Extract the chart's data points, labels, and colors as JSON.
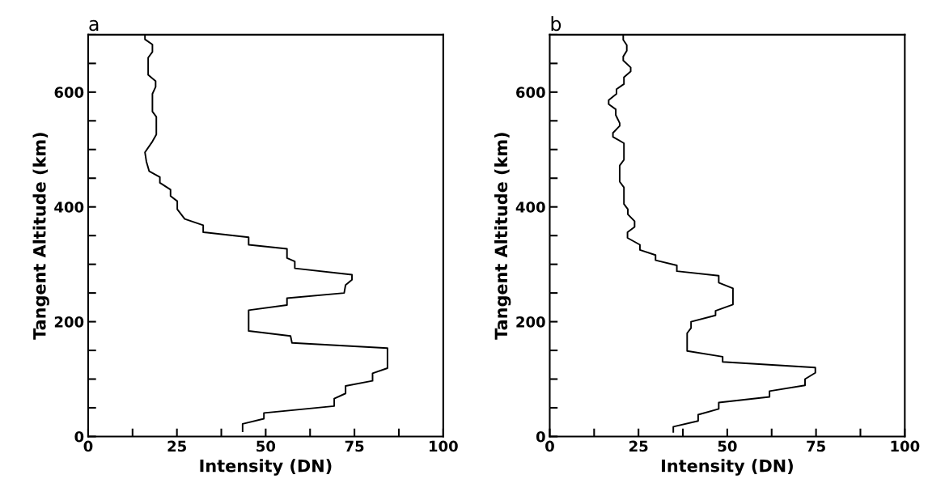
{
  "chart_data": [
    {
      "type": "line",
      "annotations": [
        "a"
      ],
      "xlabel": "Intensity (DN)",
      "ylabel": "Tangent Altitude (km)",
      "xlim": [
        0,
        100
      ],
      "ylim": [
        0,
        700
      ],
      "xticks": [
        0,
        {
          "value": 12.5,
          "label": null
        },
        25,
        {
          "value": 37.5,
          "label": null
        },
        50,
        {
          "value": 62.5,
          "label": null
        },
        75,
        {
          "value": 87.5,
          "label": null
        },
        100
      ],
      "yticks": [
        0,
        {
          "value": 50,
          "label": null
        },
        {
          "value": 100,
          "label": null
        },
        {
          "value": 150,
          "label": null
        },
        200,
        {
          "value": 250,
          "label": null
        },
        {
          "value": 300,
          "label": null
        },
        {
          "value": 350,
          "label": null
        },
        400,
        {
          "value": 450,
          "label": null
        },
        {
          "value": 500,
          "label": null
        },
        {
          "value": 550,
          "label": null
        },
        600,
        {
          "value": 650,
          "label": null
        },
        {
          "value": 700,
          "label": null
        }
      ],
      "grid": false,
      "series": [
        {
          "color": "#000000",
          "x": [
            43.5,
            43.5,
            49.5,
            49.5,
            69.3,
            69.3,
            72.5,
            72.5,
            80.1,
            80.1,
            84.3,
            84.3,
            57.4,
            57.0,
            45.2,
            45.2,
            56.0,
            56.0,
            72.1,
            72.5,
            74.3,
            74.3,
            58.2,
            58.2,
            56.0,
            56.0,
            45.2,
            45.2,
            32.4,
            32.4,
            27.2,
            25.1,
            25.1,
            23.2,
            23.2,
            20.2,
            20.2,
            17.2,
            16.4,
            16.0,
            18.1,
            19.2,
            19.2,
            18.1,
            18.1,
            19.0,
            19.0,
            16.9,
            16.9,
            18.1,
            18.1,
            16.0,
            16.0
          ],
          "values": [
            9,
            22,
            31,
            41,
            53,
            66,
            75,
            88,
            97,
            110,
            119,
            154,
            163,
            175,
            184,
            220,
            229,
            241,
            250,
            264,
            273,
            282,
            293,
            305,
            311,
            327,
            334,
            347,
            356,
            368,
            379,
            396,
            410,
            419,
            430,
            442,
            452,
            462,
            479,
            495,
            514,
            526,
            557,
            566,
            597,
            609,
            619,
            630,
            660,
            670,
            683,
            692,
            699
          ]
        }
      ]
    },
    {
      "type": "line",
      "annotations": [
        "b"
      ],
      "xlabel": "Intensity (DN)",
      "ylabel": "Tangent Altitude (km)",
      "xlim": [
        0,
        100
      ],
      "ylim": [
        0,
        700
      ],
      "xticks": [
        0,
        {
          "value": 12.5,
          "label": null
        },
        25,
        {
          "value": 37.5,
          "label": null
        },
        50,
        {
          "value": 62.5,
          "label": null
        },
        75,
        {
          "value": 87.5,
          "label": null
        },
        100
      ],
      "yticks": [
        0,
        {
          "value": 50,
          "label": null
        },
        {
          "value": 100,
          "label": null
        },
        {
          "value": 150,
          "label": null
        },
        200,
        {
          "value": 250,
          "label": null
        },
        {
          "value": 300,
          "label": null
        },
        {
          "value": 350,
          "label": null
        },
        400,
        {
          "value": 450,
          "label": null
        },
        {
          "value": 500,
          "label": null
        },
        {
          "value": 550,
          "label": null
        },
        600,
        {
          "value": 650,
          "label": null
        },
        {
          "value": 700,
          "label": null
        }
      ],
      "grid": false,
      "series": [
        {
          "color": "#000000",
          "x": [
            34.8,
            34.8,
            41.8,
            41.8,
            47.6,
            47.6,
            61.9,
            61.9,
            71.9,
            71.9,
            74.8,
            74.8,
            48.7,
            48.7,
            38.7,
            38.7,
            39.8,
            39.8,
            46.7,
            46.7,
            51.6,
            51.6,
            47.6,
            47.6,
            35.8,
            35.8,
            29.8,
            29.8,
            25.4,
            25.4,
            21.9,
            21.9,
            23.9,
            23.9,
            22.0,
            22.0,
            20.9,
            20.9,
            19.7,
            19.7,
            20.9,
            20.9,
            17.8,
            17.8,
            19.7,
            19.7,
            18.6,
            18.6,
            16.6,
            16.6,
            18.8,
            18.8,
            20.9,
            20.9,
            22.8,
            22.8,
            20.7,
            20.7,
            21.7,
            21.7,
            20.7,
            20.7
          ],
          "values": [
            8,
            17,
            27,
            38,
            48,
            59,
            69,
            79,
            89,
            100,
            111,
            120,
            130,
            139,
            149,
            180,
            189,
            200,
            211,
            219,
            230,
            258,
            268,
            280,
            288,
            298,
            307,
            316,
            325,
            334,
            346,
            356,
            365,
            375,
            387,
            396,
            405,
            434,
            444,
            472,
            482,
            511,
            522,
            529,
            541,
            546,
            560,
            570,
            579,
            586,
            597,
            605,
            614,
            626,
            636,
            643,
            655,
            662,
            672,
            682,
            691,
            698
          ]
        }
      ]
    }
  ]
}
